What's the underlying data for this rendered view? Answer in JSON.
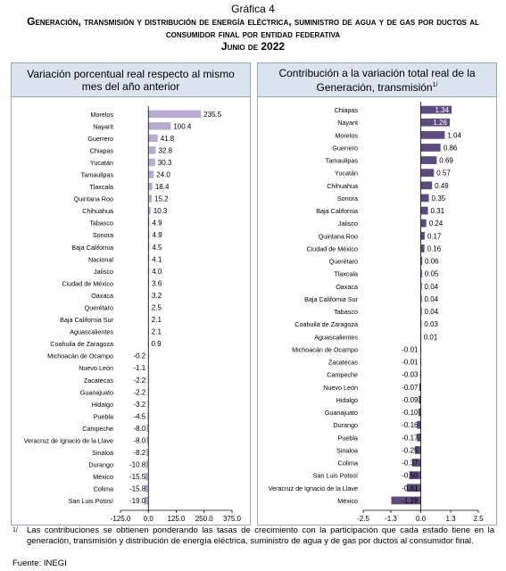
{
  "figure_label": "Gráfica 4",
  "title": "Generación, transmisión y distribución de energía eléctrica, suministro de agua y de gas por ductos al consumidor final por entidad federativa",
  "date_line": "Junio de 2022",
  "colors": {
    "bar": "#b9acd2",
    "bar_right": "#5d4b80",
    "panel_header": "#dbe3ee",
    "panel_border": "#9aa8bd"
  },
  "chart_data": [
    {
      "type": "bar",
      "orientation": "horizontal",
      "title": "Variación porcentual real respecto al mismo mes del año anterior",
      "categories": [
        "Morelos",
        "Nayarit",
        "Guerrero",
        "Chiapas",
        "Yucatán",
        "Tamaulipas",
        "Tlaxcala",
        "Quintana Roo",
        "Chihuahua",
        "Tabasco",
        "Sonora",
        "Baja California",
        "Nacional",
        "Jalisco",
        "Ciudad de México",
        "Oaxaca",
        "Querétaro",
        "Baja California Sur",
        "Aguascalientes",
        "Coahuila de Zaragoza",
        "Michoacán de Ocampo",
        "Nuevo León",
        "Zacatecas",
        "Guanajuato",
        "Hidalgo",
        "Puebla",
        "Campeche",
        "Veracruz de Ignacio de la Llave",
        "Sinaloa",
        "Durango",
        "México",
        "Colima",
        "San Luis Potosí"
      ],
      "values": [
        235.5,
        100.4,
        41.8,
        32.8,
        30.3,
        24.0,
        18.4,
        15.2,
        10.3,
        4.9,
        4.9,
        4.5,
        4.1,
        4.0,
        3.6,
        3.2,
        2.5,
        2.1,
        2.1,
        0.9,
        -0.2,
        -1.1,
        -2.2,
        -2.2,
        -3.2,
        -4.5,
        -8.0,
        -8.0,
        -8.2,
        -10.8,
        -15.5,
        -15.8,
        -19.0
      ],
      "value_labels": [
        "235.5",
        "100.4",
        "41.8",
        "32.8",
        "30.3",
        "24.0",
        "18.4",
        "15.2",
        "10.3",
        "4.9",
        "4.9",
        "4.5",
        "4.1",
        "4.0",
        "3.6",
        "3.2",
        "2.5",
        "2.1",
        "2.1",
        "0.9",
        "-0.2",
        "-1.1",
        "-2.2",
        "-2.2",
        "-3.2",
        "-4.5",
        "-8.0",
        "-8.0",
        "-8.2",
        "-10.8",
        "-15.5",
        "-15.8",
        "-19.0"
      ],
      "xlim": [
        -125.0,
        375.0
      ],
      "xticks": [
        -125.0,
        0.0,
        125.0,
        250.0,
        375.0
      ],
      "xtick_labels": [
        "-125.0",
        "0.0",
        "125.0",
        "250.0",
        "375.0"
      ],
      "grid": false
    },
    {
      "type": "bar",
      "orientation": "horizontal",
      "title": "Contribución a la variación total real de la Generación, transmisión",
      "title_sup": "1/",
      "categories": [
        "Chiapas",
        "Nayarit",
        "Morelos",
        "Guerrero",
        "Tamaulipas",
        "Yucatán",
        "Chihuahua",
        "Sonora",
        "Baja California",
        "Jalisco",
        "Quintana Roo",
        "Ciudad de México",
        "Querétaro",
        "Tlaxcala",
        "Oaxaca",
        "Baja California Sur",
        "Tabasco",
        "Coahuila de Zaragoza",
        "Aguascalientes",
        "Michoacán de Ocampo",
        "Zacatecas",
        "Campeche",
        "Nuevo León",
        "Hidalgo",
        "Guanajuato",
        "Durango",
        "Puebla",
        "Sinaloa",
        "Colima",
        "San Luis Potosí",
        "Veracruz de Ignacio de la Llave",
        "México"
      ],
      "values": [
        1.34,
        1.26,
        1.04,
        0.86,
        0.69,
        0.57,
        0.49,
        0.35,
        0.31,
        0.24,
        0.17,
        0.16,
        0.06,
        0.05,
        0.04,
        0.04,
        0.04,
        0.03,
        0.01,
        -0.01,
        -0.01,
        -0.03,
        -0.07,
        -0.09,
        -0.1,
        -0.16,
        -0.17,
        -0.25,
        -0.37,
        -0.5,
        -0.61,
        -1.28
      ],
      "value_labels": [
        "1.34",
        "1.26",
        "1.04",
        "0.86",
        "0.69",
        "0.57",
        "0.49",
        "0.35",
        "0.31",
        "0.24",
        "0.17",
        "0.16",
        "0.06",
        "0.05",
        "0.04",
        "0.04",
        "0.04",
        "0.03",
        "0.01",
        "-0.01",
        "-0.01",
        "-0.03",
        "-0.07",
        "-0.09",
        "-0.10",
        "-0.16",
        "-0.17",
        "-0.25",
        "-0.37",
        "-0.50",
        "-0.61",
        "-1.28"
      ],
      "xlim": [
        -2.5,
        2.5
      ],
      "xticks": [
        -2.5,
        -1.3,
        0.0,
        1.3,
        2.5
      ],
      "xtick_labels": [
        "-2.5",
        "-1.3",
        "0.0",
        "1.3",
        "2.5"
      ],
      "grid": false
    }
  ],
  "footnote": {
    "mark": "1/",
    "text": "Las contribuciones se obtienen ponderando las tasas de crecimiento con la participación que cada estado tiene en la generación, transmisión y distribución de energía eléctrica, suministro de agua y de gas por ductos al consumidor final."
  },
  "source": "Fuente: INEGI"
}
